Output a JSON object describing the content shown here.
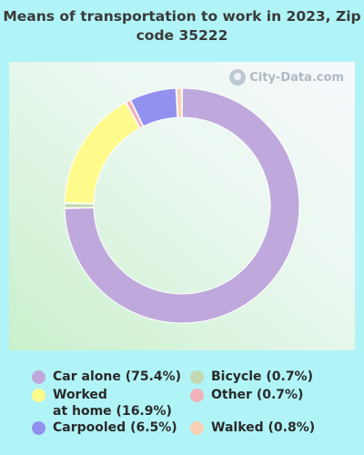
{
  "chart_data": {
    "type": "pie",
    "title": "Means of transportation to work in 2023, Zip code 35222",
    "watermark": "City-Data.com",
    "slices": [
      {
        "label": "Car alone (75.4%)",
        "value": 75.4,
        "color": "#bfa9dc"
      },
      {
        "label": "Bicycle (0.7%)",
        "value": 0.7,
        "color": "#c3d8b0"
      },
      {
        "label": "Worked\nat home (16.9%)",
        "value": 16.9,
        "color": "#fffa8c"
      },
      {
        "label": "Other (0.7%)",
        "value": 0.7,
        "color": "#f1b2b9"
      },
      {
        "label": "Carpooled (6.5%)",
        "value": 6.5,
        "color": "#9391f0"
      },
      {
        "label": "Walked (0.8%)",
        "value": 0.8,
        "color": "#f9d2b4"
      }
    ]
  }
}
